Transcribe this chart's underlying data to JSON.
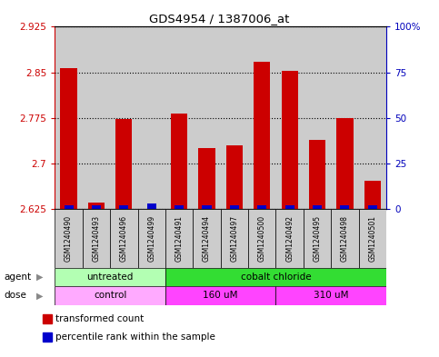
{
  "title": "GDS4954 / 1387006_at",
  "samples": [
    "GSM1240490",
    "GSM1240493",
    "GSM1240496",
    "GSM1240499",
    "GSM1240491",
    "GSM1240494",
    "GSM1240497",
    "GSM1240500",
    "GSM1240492",
    "GSM1240495",
    "GSM1240498",
    "GSM1240501"
  ],
  "transformed_count": [
    2.857,
    2.635,
    2.773,
    2.625,
    2.782,
    2.725,
    2.73,
    2.868,
    2.852,
    2.738,
    2.775,
    2.672
  ],
  "percentile_rank": [
    2,
    2,
    2,
    3,
    2,
    2,
    2,
    2,
    2,
    2,
    2,
    2
  ],
  "ylim_left": [
    2.625,
    2.925
  ],
  "ylim_right": [
    0,
    100
  ],
  "yticks_left": [
    2.625,
    2.7,
    2.775,
    2.85,
    2.925
  ],
  "yticks_right": [
    0,
    25,
    50,
    75,
    100
  ],
  "ytick_labels_left": [
    "2.625",
    "2.7",
    "2.775",
    "2.85",
    "2.925"
  ],
  "ytick_labels_right": [
    "0",
    "25",
    "50",
    "75",
    "100%"
  ],
  "bar_color": "#cc0000",
  "blue_color": "#0000cc",
  "bar_width": 0.6,
  "agent_groups": [
    {
      "label": "untreated",
      "start": 0,
      "end": 4,
      "color": "#b3ffb3"
    },
    {
      "label": "cobalt chloride",
      "start": 4,
      "end": 12,
      "color": "#33dd33"
    }
  ],
  "dose_groups": [
    {
      "label": "control",
      "start": 0,
      "end": 4,
      "color": "#ffaaff"
    },
    {
      "label": "160 uM",
      "start": 4,
      "end": 8,
      "color": "#ff44ff"
    },
    {
      "label": "310 uM",
      "start": 8,
      "end": 12,
      "color": "#ff44ff"
    }
  ],
  "legend_items": [
    {
      "label": "transformed count",
      "color": "#cc0000"
    },
    {
      "label": "percentile rank within the sample",
      "color": "#0000cc"
    }
  ],
  "col_bg": "#cccccc",
  "ylabel_left_color": "#cc0000",
  "ylabel_right_color": "#0000bb"
}
